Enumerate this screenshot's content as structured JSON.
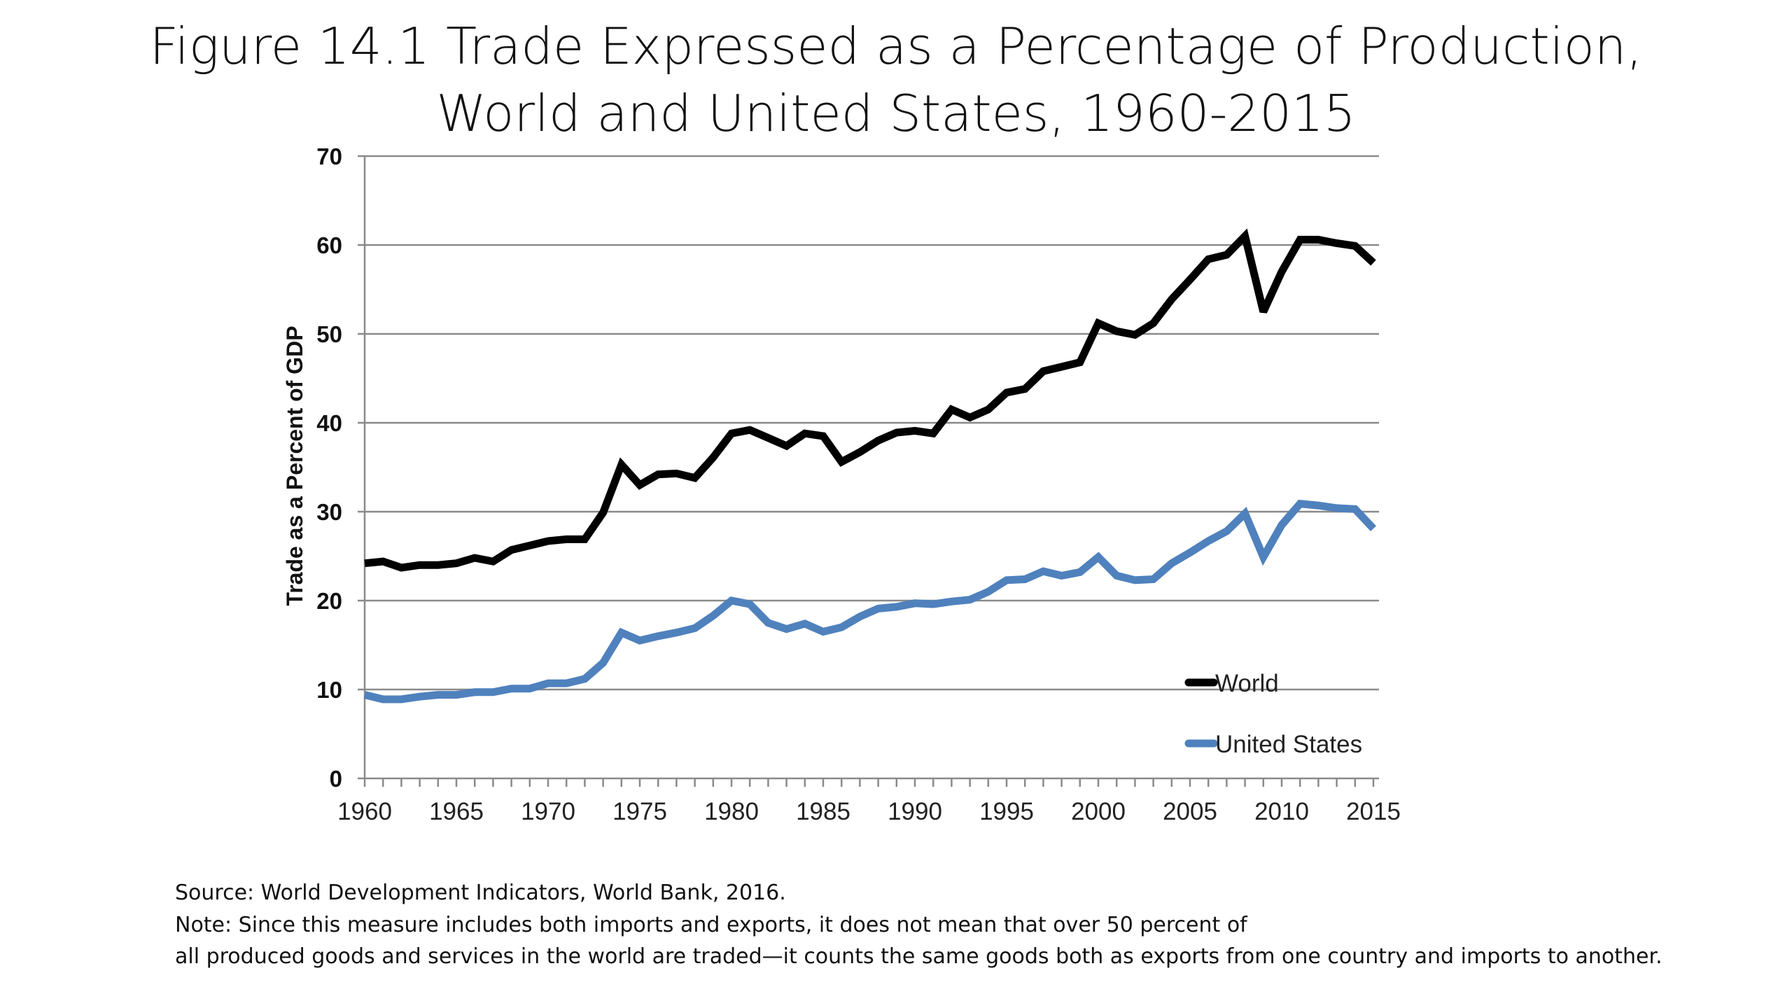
{
  "title_lines": [
    "Figure 14.1 Trade Expressed as a Percentage of Production,",
    "World and United States, 1960-2015"
  ],
  "notes": {
    "source": "Source: World Development Indicators, World Bank, 2016.",
    "note_line1": "Note: Since this measure includes both imports and exports, it does not mean that over 50 percent of",
    "note_line2": "all produced goods and services in the world are traded—it counts the same goods both as exports from one country and imports to another."
  },
  "chart_data": {
    "type": "line",
    "title": "Figure 14.1 Trade Expressed as a Percentage of Production, World and United States, 1960-2015",
    "xlabel": "",
    "ylabel": "Trade as a Percent of GDP",
    "ylim": [
      0,
      70
    ],
    "yticks": [
      0,
      10,
      20,
      30,
      40,
      50,
      60,
      70
    ],
    "xlim": [
      1960,
      2015
    ],
    "xticks": [
      1960,
      1965,
      1970,
      1975,
      1980,
      1985,
      1990,
      1995,
      2000,
      2005,
      2010,
      2015
    ],
    "grid": "horizontal",
    "legend_position": "bottom-right",
    "x": [
      1960,
      1961,
      1962,
      1963,
      1964,
      1965,
      1966,
      1967,
      1968,
      1969,
      1970,
      1971,
      1972,
      1973,
      1974,
      1975,
      1976,
      1977,
      1978,
      1979,
      1980,
      1981,
      1982,
      1983,
      1984,
      1985,
      1986,
      1987,
      1988,
      1989,
      1990,
      1991,
      1992,
      1993,
      1994,
      1995,
      1996,
      1997,
      1998,
      1999,
      2000,
      2001,
      2002,
      2003,
      2004,
      2005,
      2006,
      2007,
      2008,
      2009,
      2010,
      2011,
      2012,
      2013,
      2014,
      2015
    ],
    "series": [
      {
        "name": "World",
        "color": "#000000",
        "values": [
          24.2,
          24.4,
          23.7,
          24.0,
          24.0,
          24.2,
          24.8,
          24.4,
          25.7,
          26.2,
          26.7,
          26.9,
          26.9,
          29.9,
          35.3,
          33.0,
          34.2,
          34.3,
          33.8,
          36.1,
          38.8,
          39.2,
          38.3,
          37.4,
          38.8,
          38.5,
          35.6,
          36.7,
          38.0,
          38.9,
          39.1,
          38.8,
          41.5,
          40.6,
          41.5,
          43.4,
          43.8,
          45.8,
          46.3,
          46.8,
          51.2,
          50.3,
          49.9,
          51.2,
          53.9,
          56.1,
          58.4,
          58.9,
          61.0,
          52.5,
          57.0,
          60.6,
          60.6,
          60.2,
          59.9,
          58.0
        ]
      },
      {
        "name": "United States",
        "color": "#4f81bd",
        "values": [
          9.4,
          8.9,
          8.9,
          9.2,
          9.4,
          9.4,
          9.7,
          9.7,
          10.1,
          10.1,
          10.7,
          10.7,
          11.2,
          13.0,
          16.4,
          15.5,
          16.0,
          16.4,
          16.9,
          18.3,
          20.0,
          19.6,
          17.5,
          16.8,
          17.4,
          16.5,
          17.0,
          18.2,
          19.1,
          19.3,
          19.7,
          19.6,
          19.9,
          20.1,
          21.0,
          22.3,
          22.4,
          23.3,
          22.8,
          23.2,
          24.9,
          22.8,
          22.3,
          22.4,
          24.2,
          25.4,
          26.7,
          27.8,
          29.8,
          24.9,
          28.5,
          30.9,
          30.7,
          30.4,
          30.3,
          28.1
        ]
      }
    ]
  }
}
